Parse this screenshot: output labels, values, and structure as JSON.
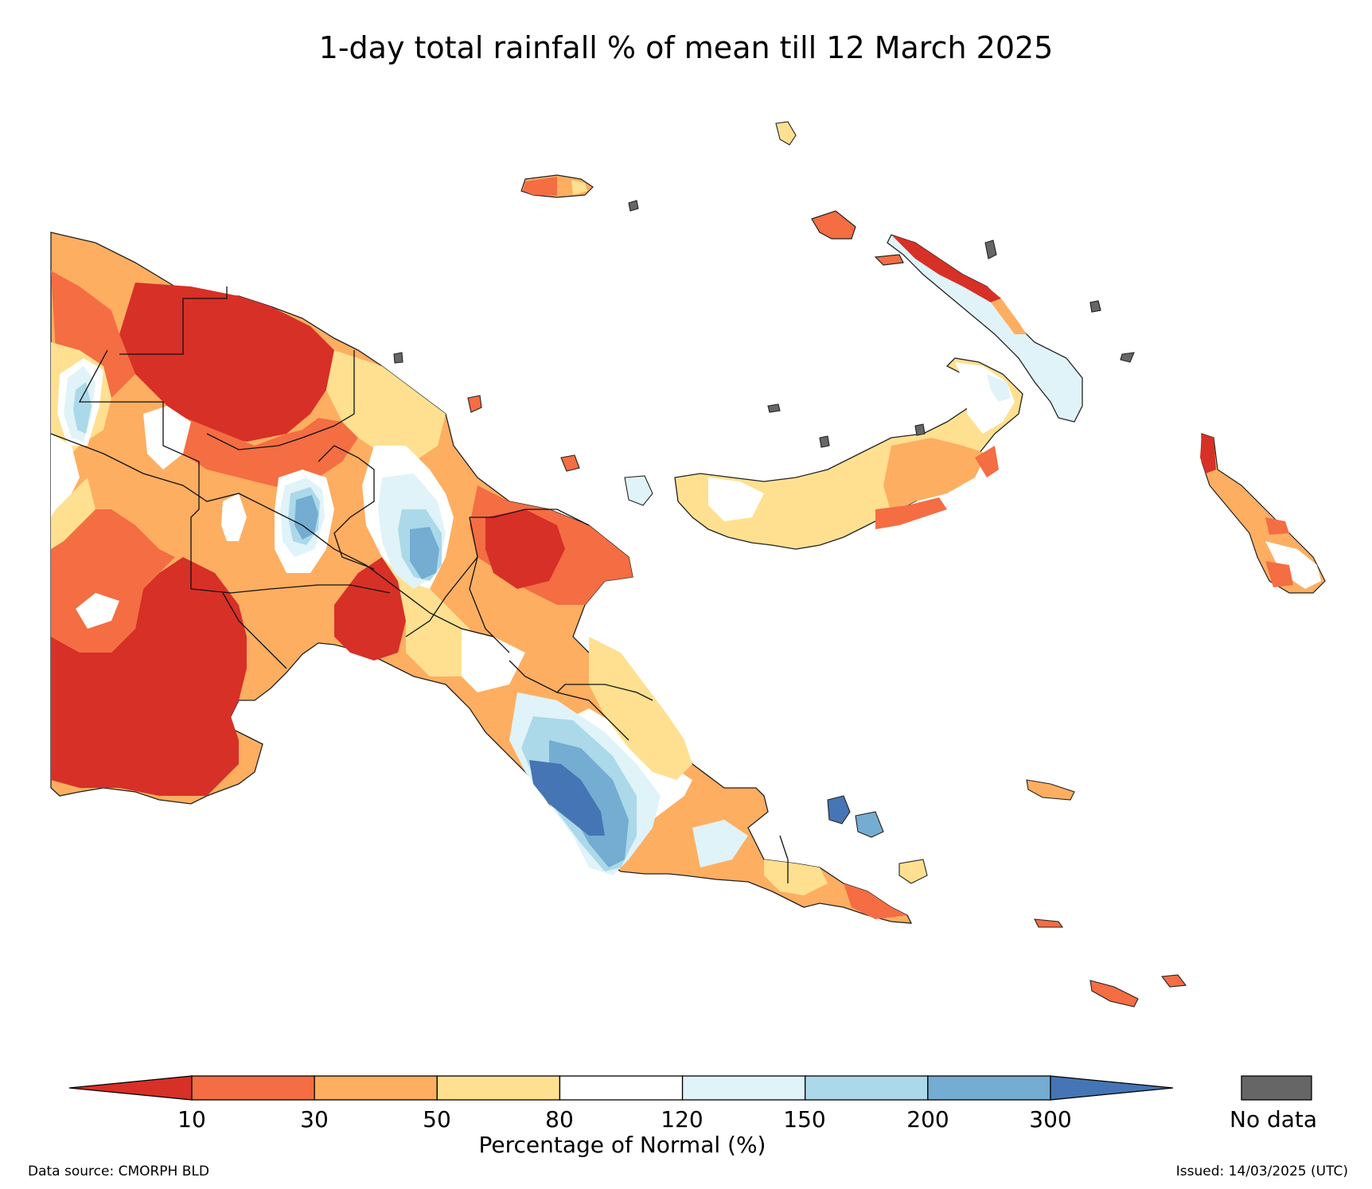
{
  "title": "1-day total rainfall % of mean till 12 March 2025",
  "colorbar": {
    "title": "Percentage of Normal (%)",
    "ticks": [
      "10",
      "30",
      "50",
      "80",
      "120",
      "150",
      "200",
      "300"
    ],
    "colors": [
      "#d73027",
      "#f46d43",
      "#fdae61",
      "#fee090",
      "#ffffff",
      "#e0f3f8",
      "#abd9e9",
      "#74add1",
      "#4575b4"
    ],
    "nodata_label": "No data",
    "nodata_color": "#666666"
  },
  "footer": {
    "source": "Data source: CMORPH BLD",
    "issued": "Issued: 14/03/2025 (UTC)"
  }
}
